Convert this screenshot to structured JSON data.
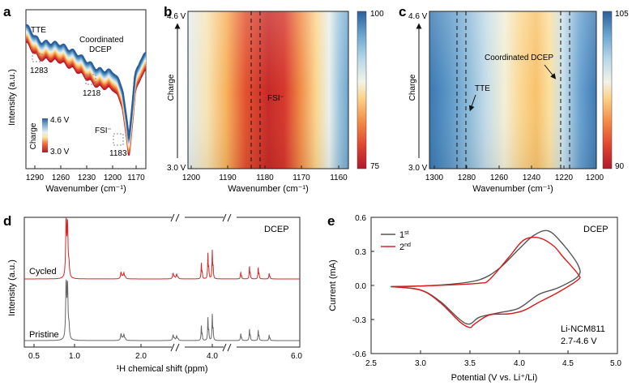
{
  "colors": {
    "red": "#d7191c",
    "gray": "#555555",
    "cycled": "#d62728",
    "pristine": "#666666",
    "cmap": [
      "#b2182b",
      "#d6372b",
      "#ee6a3a",
      "#f7b15b",
      "#fbe6a6",
      "#e3eef3",
      "#9fc6de",
      "#4f8fc0",
      "#2a5f9a"
    ]
  },
  "panels": {
    "a": {
      "label": "a",
      "ylabel": "Intensity (a.u.)",
      "xlabel": "Wavenumber (cm⁻¹)",
      "xticks": [
        "1290",
        "1260",
        "1230",
        "1200",
        "1170"
      ],
      "ann_tte": "TTE",
      "ann_coord_1": "Coordinated",
      "ann_coord_2": "DCEP",
      "ann_fsi": "FSI⁻",
      "peak_1283": "1283",
      "peak_1218": "1218",
      "peak_1183": "1183",
      "legend_top": "4.6 V",
      "legend_bottom": "3.0 V",
      "legend_label": "Charge"
    },
    "b": {
      "label": "b",
      "xlabel": "Wavenumber (cm⁻¹)",
      "xticks": [
        "1200",
        "1190",
        "1180",
        "1170",
        "1160"
      ],
      "ytop": "4.6 V",
      "ybottom": "3.0 V",
      "ylabel": "Charge",
      "ann_fsi": "FSI⁻",
      "cbar_max": "100",
      "cbar_min": "75"
    },
    "c": {
      "label": "c",
      "xlabel": "Wavenumber (cm⁻¹)",
      "xticks": [
        "1300",
        "1280",
        "1260",
        "1240",
        "1220",
        "1200"
      ],
      "ytop": "4.6 V",
      "ybottom": "3.0 V",
      "ylabel": "Charge",
      "ann_coord": "Coordinated DCEP",
      "ann_tte": "TTE",
      "cbar_max": "105",
      "cbar_min": "90"
    },
    "d": {
      "label": "d",
      "ylabel": "Intensity (a.u.)",
      "xlabel": "¹H chemical shift (ppm)",
      "xticks": [
        "0.5",
        "1.0",
        "2.0",
        "4.0",
        "6.0"
      ],
      "title": "DCEP",
      "trace_top": "Cycled",
      "trace_bottom": "Pristine"
    },
    "e": {
      "label": "e",
      "ylabel": "Current (mA)",
      "xlabel": "Potential (V vs. Li⁺/Li)",
      "xticks": [
        "2.5",
        "3.0",
        "3.5",
        "4.0",
        "4.5",
        "5.0"
      ],
      "yticks": [
        "0.6",
        "0.3",
        "0.0",
        "-0.3",
        "-0.6"
      ],
      "title": "DCEP",
      "legend_1": "1",
      "legend_1_sup": "st",
      "legend_2": "2",
      "legend_2_sup": "nd",
      "note_1": "Li-NCM811",
      "note_2": "2.7-4.6 V"
    }
  },
  "chart_data": [
    {
      "type": "line",
      "panel": "a",
      "title": "",
      "xlabel": "Wavenumber (cm⁻¹)",
      "ylabel": "Intensity (a.u.)",
      "xlim": [
        1298,
        1164
      ],
      "x": [
        1298,
        1283,
        1260,
        1240,
        1218,
        1200,
        1190,
        1183,
        1176,
        1170,
        1164
      ],
      "series_note": "stack of curves colored from 3.0 V (red) to 4.6 V (blue)",
      "values": [
        0.95,
        0.82,
        0.8,
        0.72,
        0.6,
        0.58,
        0.45,
        0.05,
        0.55,
        0.68,
        0.72
      ]
    },
    {
      "type": "heatmap",
      "panel": "b",
      "xlabel": "Wavenumber (cm⁻¹)",
      "ylabel": "Charge",
      "xlim": [
        1200,
        1157
      ],
      "ylim": [
        "3.0 V",
        "4.6 V"
      ],
      "colorbar": [
        75,
        100
      ],
      "marker_lines": [
        1184,
        1182
      ]
    },
    {
      "type": "heatmap",
      "panel": "c",
      "xlabel": "Wavenumber (cm⁻¹)",
      "ylabel": "Charge",
      "xlim": [
        1302,
        1200
      ],
      "ylim": [
        "3.0 V",
        "4.6 V"
      ],
      "colorbar": [
        90,
        105
      ],
      "marker_lines": [
        1285,
        1280,
        1220,
        1216
      ]
    },
    {
      "type": "line",
      "panel": "d",
      "xlabel": "¹H chemical shift (ppm)",
      "ylabel": "Intensity (a.u.)",
      "series": [
        {
          "name": "Cycled",
          "peaks": [
            [
              0.95,
              1.0
            ],
            [
              0.97,
              0.6
            ],
            [
              1.72,
              0.12
            ],
            [
              1.76,
              0.1
            ],
            [
              2.45,
              0.1
            ],
            [
              2.5,
              0.08
            ],
            [
              3.55,
              0.28
            ],
            [
              3.7,
              0.45
            ],
            [
              3.8,
              0.5
            ],
            [
              4.45,
              0.12
            ],
            [
              4.65,
              0.22
            ],
            [
              4.85,
              0.2
            ],
            [
              5.1,
              0.1
            ]
          ]
        },
        {
          "name": "Pristine",
          "peaks": [
            [
              0.95,
              1.0
            ],
            [
              0.97,
              0.6
            ],
            [
              1.72,
              0.12
            ],
            [
              1.76,
              0.1
            ],
            [
              2.45,
              0.1
            ],
            [
              2.5,
              0.08
            ],
            [
              3.55,
              0.26
            ],
            [
              3.7,
              0.4
            ],
            [
              3.8,
              0.46
            ],
            [
              4.45,
              0.12
            ],
            [
              4.65,
              0.2
            ],
            [
              4.85,
              0.18
            ],
            [
              5.1,
              0.1
            ]
          ]
        }
      ]
    },
    {
      "type": "line",
      "panel": "e",
      "title": "DCEP",
      "xlabel": "Potential (V vs. Li⁺/Li)",
      "ylabel": "Current (mA)",
      "xlim": [
        2.5,
        5.0
      ],
      "ylim": [
        -0.6,
        0.6
      ],
      "series": [
        {
          "name": "1st",
          "x": [
            2.7,
            3.0,
            3.3,
            3.6,
            3.8,
            4.0,
            4.15,
            4.3,
            4.45,
            4.6,
            4.6,
            4.4,
            4.2,
            4.0,
            3.8,
            3.6,
            3.5,
            3.4,
            3.2,
            3.0,
            2.7
          ],
          "y": [
            -0.01,
            -0.005,
            0.01,
            0.05,
            0.15,
            0.32,
            0.44,
            0.48,
            0.36,
            0.18,
            0.08,
            -0.02,
            -0.08,
            -0.2,
            -0.24,
            -0.28,
            -0.34,
            -0.3,
            -0.14,
            -0.04,
            -0.01
          ]
        },
        {
          "name": "2nd",
          "x": [
            2.7,
            3.0,
            3.3,
            3.6,
            3.7,
            3.9,
            4.05,
            4.2,
            4.35,
            4.45,
            4.6,
            4.6,
            4.4,
            4.2,
            4.05,
            3.9,
            3.7,
            3.55,
            3.5,
            3.4,
            3.2,
            3.0,
            2.7
          ],
          "y": [
            -0.01,
            -0.005,
            0.005,
            0.02,
            0.05,
            0.25,
            0.4,
            0.42,
            0.35,
            0.25,
            0.1,
            0.05,
            -0.06,
            -0.15,
            -0.22,
            -0.25,
            -0.26,
            -0.34,
            -0.37,
            -0.32,
            -0.15,
            -0.04,
            -0.01
          ]
        }
      ]
    }
  ]
}
